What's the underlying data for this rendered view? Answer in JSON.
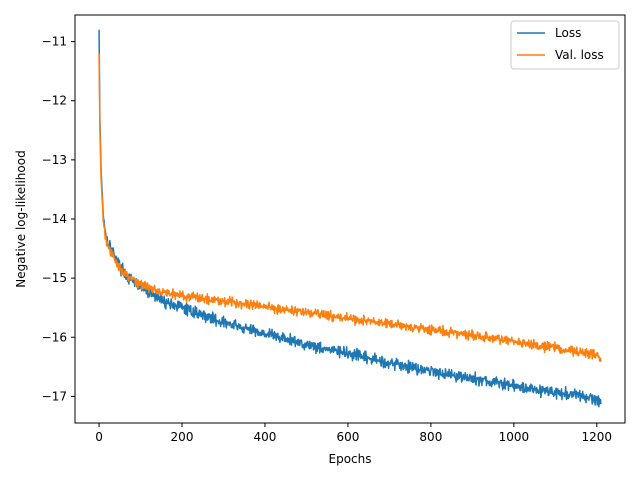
{
  "chart_data": {
    "type": "line",
    "title": "",
    "xlabel": "Epochs",
    "ylabel": "Negative log-likelihood",
    "xlim": [
      -58,
      1268
    ],
    "ylim": [
      -17.45,
      -10.55
    ],
    "xticks": [
      0,
      200,
      400,
      600,
      800,
      1000,
      1200
    ],
    "yticks": [
      -11,
      -12,
      -13,
      -14,
      -15,
      -16,
      -17
    ],
    "grid": false,
    "legend_position": "upper right",
    "colors": {
      "Loss": "#1f77b4",
      "Val. loss": "#ff7f0e"
    },
    "x": [
      0,
      2,
      5,
      10,
      15,
      20,
      30,
      40,
      50,
      60,
      70,
      80,
      90,
      100,
      120,
      140,
      160,
      180,
      200,
      250,
      300,
      350,
      400,
      450,
      500,
      550,
      600,
      650,
      700,
      750,
      800,
      850,
      900,
      950,
      1000,
      1050,
      1100,
      1150,
      1200,
      1210
    ],
    "series": [
      {
        "name": "Loss",
        "values": [
          -10.8,
          -12.3,
          -13.2,
          -13.9,
          -14.2,
          -14.35,
          -14.5,
          -14.65,
          -14.8,
          -14.9,
          -15.0,
          -15.05,
          -15.1,
          -15.15,
          -15.25,
          -15.32,
          -15.4,
          -15.45,
          -15.5,
          -15.62,
          -15.75,
          -15.85,
          -15.93,
          -16.03,
          -16.12,
          -16.2,
          -16.28,
          -16.36,
          -16.43,
          -16.5,
          -16.57,
          -16.63,
          -16.7,
          -16.76,
          -16.82,
          -16.88,
          -16.93,
          -16.98,
          -17.05,
          -17.1
        ]
      },
      {
        "name": "Val. loss",
        "values": [
          -11.2,
          -12.5,
          -13.35,
          -14.0,
          -14.3,
          -14.45,
          -14.6,
          -14.72,
          -14.82,
          -14.9,
          -14.97,
          -15.02,
          -15.07,
          -15.1,
          -15.16,
          -15.2,
          -15.24,
          -15.27,
          -15.3,
          -15.34,
          -15.38,
          -15.43,
          -15.48,
          -15.53,
          -15.58,
          -15.63,
          -15.68,
          -15.73,
          -15.78,
          -15.82,
          -15.87,
          -15.92,
          -15.97,
          -16.02,
          -16.07,
          -16.12,
          -16.18,
          -16.24,
          -16.3,
          -16.35
        ]
      }
    ],
    "noise_amplitude": {
      "Loss": 0.06,
      "Val. loss": 0.05
    },
    "points_per_series": 1211
  }
}
